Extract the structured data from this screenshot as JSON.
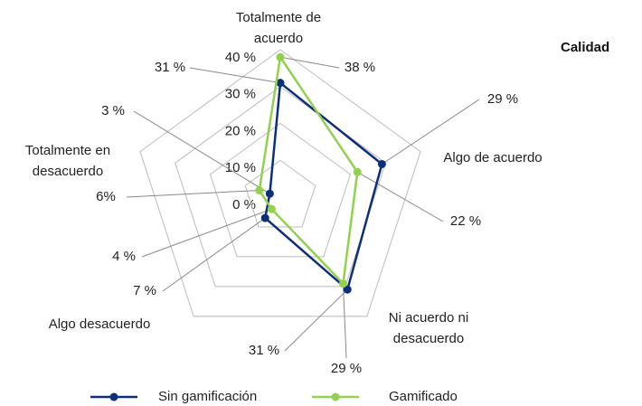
{
  "chart_data": {
    "type": "radar",
    "title": "Calidad",
    "categories": [
      "Totalmente de acuerdo",
      "Algo de acuerdo",
      "Ni acuerdo ni desacuerdo",
      "Algo desacuerdo",
      "Totalmente en desacuerdo"
    ],
    "series": [
      {
        "name": "Sin gamificación",
        "color": "#0d2f7a",
        "values": [
          31,
          29,
          31,
          7,
          3
        ],
        "value_labels": [
          "31 %",
          "29 %",
          "31 %",
          "7 %",
          "3 %"
        ]
      },
      {
        "name": "Gamificado",
        "color": "#92d050",
        "values": [
          38,
          22,
          29,
          4,
          6
        ],
        "value_labels": [
          "38 %",
          "22 %",
          "29 %",
          "4 %",
          "6%"
        ]
      }
    ],
    "rlim": [
      0,
      40
    ],
    "rticks": [
      {
        "value": 0,
        "label": "0 %"
      },
      {
        "value": 10,
        "label": "10 %"
      },
      {
        "value": 20,
        "label": "20 %"
      },
      {
        "value": 30,
        "label": "30 %"
      },
      {
        "value": 40,
        "label": "40 %"
      }
    ],
    "grid": true,
    "legend": "bottom"
  }
}
